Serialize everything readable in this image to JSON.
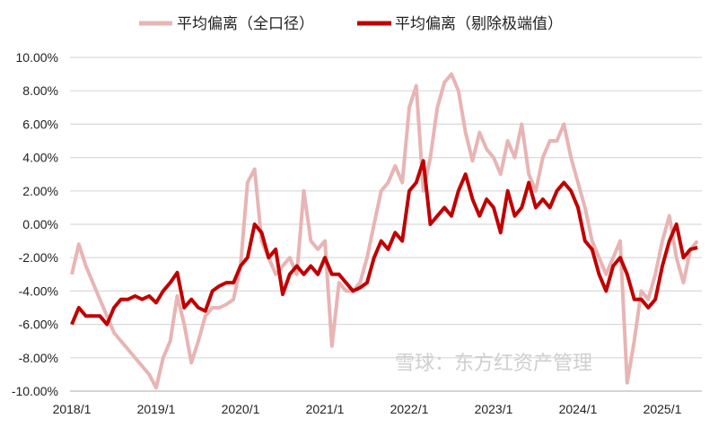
{
  "chart_data": {
    "type": "line",
    "title": "",
    "xlabel": "",
    "ylabel": "",
    "ylim": [
      -10,
      10
    ],
    "yticks": [
      "10.00%",
      "8.00%",
      "6.00%",
      "4.00%",
      "2.00%",
      "0.00%",
      "-2.00%",
      "-4.00%",
      "-6.00%",
      "-8.00%",
      "-10.00%"
    ],
    "xticks": [
      "2018/1",
      "2019/1",
      "2020/1",
      "2021/1",
      "2022/1",
      "2023/1",
      "2024/1",
      "2025/1"
    ],
    "grid": true,
    "legend_position": "top",
    "x_start": "2018-01",
    "x_step": "month",
    "series": [
      {
        "name": "平均偏离（全口径）",
        "color": "#e8b4b4",
        "values": [
          -3,
          -1.2,
          -2.5,
          -3.5,
          -4.5,
          -5.5,
          -6.5,
          -7,
          -7.5,
          -8,
          -8.5,
          -9,
          -9.8,
          -8,
          -7,
          -4.3,
          -6,
          -8.3,
          -7,
          -5.5,
          -5,
          -5,
          -4.8,
          -4.5,
          -2.5,
          2.5,
          3.3,
          -1,
          -2,
          -3,
          -2.5,
          -2,
          -3,
          2,
          -1,
          -1.5,
          -1,
          -7.3,
          -3.5,
          -4,
          -4,
          -3.5,
          -2,
          0,
          2,
          2.5,
          3.5,
          2.5,
          7,
          8.3,
          2,
          4,
          7,
          8.5,
          9,
          8,
          5.5,
          3.8,
          5.5,
          4.5,
          4,
          3,
          5,
          4,
          6,
          3,
          2,
          4,
          5,
          5,
          6,
          4,
          2.5,
          1,
          -1,
          -2,
          -3,
          -2,
          -1,
          -9.5,
          -7,
          -4,
          -4.5,
          -3,
          -1,
          0.5,
          -2,
          -3.5,
          -1.5,
          -1
        ]
      },
      {
        "name": "平均偏离（剔除极端值）",
        "color": "#c00000",
        "values": [
          -6,
          -5,
          -5.5,
          -5.5,
          -5.5,
          -6,
          -5,
          -4.5,
          -4.5,
          -4.3,
          -4.5,
          -4.3,
          -4.7,
          -4,
          -3.5,
          -2.9,
          -5,
          -4.5,
          -5,
          -5.2,
          -4,
          -3.7,
          -3.5,
          -3.5,
          -2.5,
          -2,
          0,
          -0.5,
          -2,
          -1.5,
          -4.2,
          -3,
          -2.5,
          -3,
          -2.5,
          -3,
          -2,
          -3,
          -3,
          -3.5,
          -4,
          -3.8,
          -3.5,
          -2,
          -1,
          -1.5,
          -0.5,
          -1,
          2,
          2.5,
          3.8,
          0,
          0.5,
          1,
          0.5,
          2,
          3,
          1.5,
          0.5,
          1.5,
          1,
          -0.5,
          2,
          0.5,
          1,
          2.5,
          1,
          1.5,
          1,
          2,
          2.5,
          2,
          1,
          -1,
          -1.5,
          -3,
          -4,
          -2.5,
          -2,
          -3,
          -4.5,
          -4.5,
          -5,
          -4.5,
          -2.5,
          -1,
          0,
          -2,
          -1.5,
          -1.4
        ]
      }
    ]
  },
  "watermark": "雪球：东方红资产管理"
}
